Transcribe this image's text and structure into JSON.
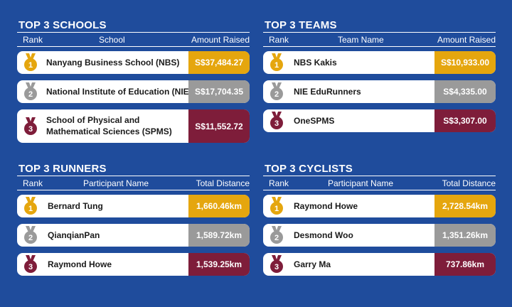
{
  "colors": {
    "background": "#1f4c9c",
    "gold": "#e5a60e",
    "silver": "#9a9a9a",
    "bronze": "#7e1d3a"
  },
  "schools": {
    "title": "TOP 3 SCHOOLS",
    "col_rank": "Rank",
    "col_name": "School",
    "col_value": "Amount Raised",
    "rows": [
      {
        "rank": "1",
        "name": "Nanyang Business School (NBS)",
        "value": "S$37,484.27"
      },
      {
        "rank": "2",
        "name": "National Institute of Education (NIE)",
        "value": "S$17,704.35"
      },
      {
        "rank": "3",
        "name_line1": "School of Physical and",
        "name_line2": "Mathematical Sciences (SPMS)",
        "value": "S$11,552.72"
      }
    ]
  },
  "teams": {
    "title": "TOP 3 TEAMS",
    "col_rank": "Rank",
    "col_name": "Team Name",
    "col_value": "Amount Raised",
    "rows": [
      {
        "rank": "1",
        "name": "NBS Kakis",
        "value": "S$10,933.00"
      },
      {
        "rank": "2",
        "name": "NIE EduRunners",
        "value": "S$4,335.00"
      },
      {
        "rank": "3",
        "name": "OneSPMS",
        "value": "S$3,307.00"
      }
    ]
  },
  "runners": {
    "title": "TOP 3 RUNNERS",
    "col_rank": "Rank",
    "col_name": "Participant Name",
    "col_value": "Total Distance",
    "rows": [
      {
        "rank": "1",
        "name": "Bernard Tung",
        "value": "1,660.46km"
      },
      {
        "rank": "2",
        "name": "QianqianPan",
        "value": "1,589.72km"
      },
      {
        "rank": "3",
        "name": "Raymond Howe",
        "value": "1,539.25km"
      }
    ]
  },
  "cyclists": {
    "title": "TOP 3 CYCLISTS",
    "col_rank": "Rank",
    "col_name": "Participant Name",
    "col_value": "Total Distance",
    "rows": [
      {
        "rank": "1",
        "name": "Raymond Howe",
        "value": "2,728.54km"
      },
      {
        "rank": "2",
        "name": "Desmond Woo",
        "value": "1,351.26km"
      },
      {
        "rank": "3",
        "name": "Garry Ma",
        "value": "737.86km"
      }
    ]
  }
}
